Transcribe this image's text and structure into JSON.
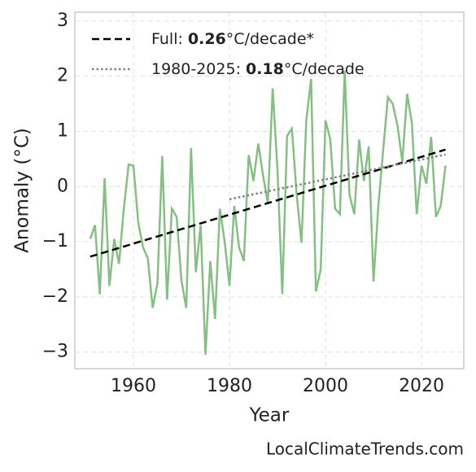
{
  "chart_data": {
    "type": "line",
    "xlabel": "Year",
    "ylabel": "Anomaly (°C)",
    "x": [
      1951,
      1952,
      1953,
      1954,
      1955,
      1956,
      1957,
      1958,
      1959,
      1960,
      1961,
      1962,
      1963,
      1964,
      1965,
      1966,
      1967,
      1968,
      1969,
      1970,
      1971,
      1972,
      1973,
      1974,
      1975,
      1976,
      1977,
      1978,
      1979,
      1980,
      1981,
      1982,
      1983,
      1984,
      1985,
      1986,
      1987,
      1988,
      1989,
      1990,
      1991,
      1992,
      1993,
      1994,
      1995,
      1996,
      1997,
      1998,
      1999,
      2000,
      2001,
      2002,
      2003,
      2004,
      2005,
      2006,
      2007,
      2008,
      2009,
      2010,
      2011,
      2012,
      2013,
      2014,
      2015,
      2016,
      2017,
      2018,
      2019,
      2020,
      2021,
      2022,
      2023,
      2024,
      2025
    ],
    "values": [
      -0.95,
      -0.7,
      -1.95,
      0.15,
      -1.8,
      -0.95,
      -1.4,
      -0.4,
      0.4,
      0.38,
      -0.65,
      -1.1,
      -1.3,
      -2.2,
      -1.75,
      0.55,
      -2.05,
      -0.4,
      -0.55,
      -1.7,
      -2.2,
      0.7,
      -1.55,
      -0.7,
      -3.05,
      -1.35,
      -2.4,
      -0.4,
      -1.0,
      -1.8,
      -0.35,
      -1.1,
      -1.35,
      0.57,
      0.1,
      0.78,
      0.2,
      -0.3,
      1.78,
      0.3,
      -1.95,
      0.92,
      1.05,
      -0.15,
      -1.02,
      1.2,
      1.95,
      -1.9,
      -1.5,
      1.2,
      0.85,
      -0.4,
      -0.5,
      2.1,
      -0.15,
      -0.5,
      0.85,
      0.1,
      0.73,
      -1.72,
      -0.35,
      0.65,
      1.62,
      1.5,
      1.1,
      0.45,
      1.68,
      1.15,
      -0.5,
      0.38,
      0.05,
      0.9,
      -0.55,
      -0.35,
      0.38
    ],
    "color": "#86bf83",
    "trend_lines": [
      {
        "name_parts": [
          "Full:",
          "0.26",
          "°C/decade*"
        ],
        "x": [
          1951,
          2025
        ],
        "values": [
          -1.27,
          0.67
        ],
        "color": "#000000",
        "style": "dashed"
      },
      {
        "name_parts": [
          "1980-2025:",
          "0.18",
          "°C/decade"
        ],
        "x": [
          1980,
          2025
        ],
        "values": [
          -0.23,
          0.58
        ],
        "color": "#808080",
        "style": "dotted"
      }
    ],
    "xlim": [
      1947.8,
      2028.8
    ],
    "ylim": [
      -3.3,
      3.16
    ],
    "xticks": [
      1960,
      1980,
      2000,
      2020
    ],
    "yticks": [
      {
        "value": -3,
        "label": "−3"
      },
      {
        "value": -2,
        "label": "−2"
      },
      {
        "value": -1,
        "label": "−1"
      },
      0,
      1,
      2,
      3
    ],
    "grid": true,
    "legend": "upper left",
    "watermark": "LocalClimateTrends.com"
  }
}
